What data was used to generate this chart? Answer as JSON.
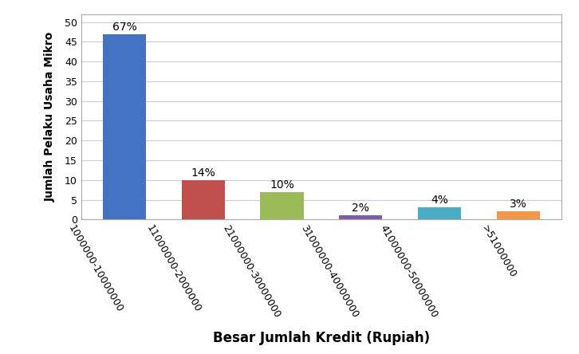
{
  "categories": [
    "1000000-10000000",
    "11000000-2000000",
    "21000000-30000000",
    "31000000-40000000",
    "41000000-50000000",
    ">51000000"
  ],
  "values": [
    47,
    10,
    7,
    1,
    3,
    2
  ],
  "percentages": [
    "67%",
    "14%",
    "10%",
    "2%",
    "4%",
    "3%"
  ],
  "bar_colors": [
    "#4472C4",
    "#C0504D",
    "#9BBB59",
    "#7B5EA7",
    "#4BACC6",
    "#F79646"
  ],
  "xlabel": "Besar Jumlah Kredit (Rupiah)",
  "ylabel": "Jumlah Pelaku Usaha Mikro",
  "ylim": [
    0,
    52
  ],
  "yticks": [
    0,
    5,
    10,
    15,
    20,
    25,
    30,
    35,
    40,
    45,
    50
  ],
  "background_color": "#FFFFFF",
  "grid_color": "#CCCCCC",
  "xlabel_fontsize": 12,
  "ylabel_fontsize": 10,
  "tick_label_fontsize": 9,
  "annotation_fontsize": 10,
  "bar_width": 0.55,
  "rotation": -60
}
